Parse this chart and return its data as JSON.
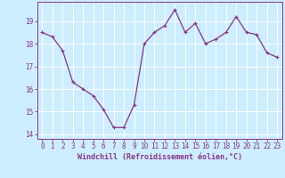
{
  "x": [
    0,
    1,
    2,
    3,
    4,
    5,
    6,
    7,
    8,
    9,
    10,
    11,
    12,
    13,
    14,
    15,
    16,
    17,
    18,
    19,
    20,
    21,
    22,
    23
  ],
  "y": [
    18.5,
    18.3,
    17.7,
    16.3,
    16.0,
    15.7,
    15.1,
    14.3,
    14.3,
    15.3,
    18.0,
    18.5,
    18.8,
    19.5,
    18.5,
    18.9,
    18.0,
    18.2,
    18.5,
    19.2,
    18.5,
    18.4,
    17.6,
    17.4
  ],
  "line_color": "#883388",
  "marker": "+",
  "marker_size": 3,
  "marker_lw": 0.8,
  "bg_color": "#cceeff",
  "grid_color": "#ffffff",
  "xlabel": "Windchill (Refroidissement éolien,°C)",
  "ylim": [
    13.8,
    19.85
  ],
  "xlim": [
    -0.5,
    23.5
  ],
  "yticks": [
    14,
    15,
    16,
    17,
    18,
    19
  ],
  "xticks": [
    0,
    1,
    2,
    3,
    4,
    5,
    6,
    7,
    8,
    9,
    10,
    11,
    12,
    13,
    14,
    15,
    16,
    17,
    18,
    19,
    20,
    21,
    22,
    23
  ],
  "tick_label_fontsize": 5.5,
  "xlabel_fontsize": 6.0,
  "tick_color": "#883388",
  "line_width": 0.9
}
